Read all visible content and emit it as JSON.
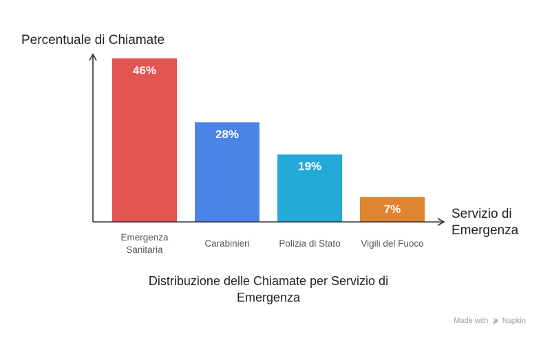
{
  "chart_data": {
    "type": "bar",
    "title": "Distribuzione delle Chiamate per Servizio di Emergenza",
    "ylabel": "Percentuale di Chiamate",
    "xlabel": "Servizio di Emergenza",
    "categories": [
      "Emergenza Sanitaria",
      "Carabinieri",
      "Polizia di Stato",
      "Vigili del Fuoco"
    ],
    "category_lines": [
      [
        "Emergenza",
        "Sanitaria"
      ],
      [
        "Carabinieri"
      ],
      [
        "Polizia di Stato"
      ],
      [
        "Vigili del Fuoco"
      ]
    ],
    "values": [
      46,
      28,
      19,
      7
    ],
    "value_labels": [
      "46%",
      "28%",
      "19%",
      "7%"
    ],
    "colors": [
      "#e35552",
      "#4a84e6",
      "#23aad9",
      "#e0842f"
    ],
    "ylim": [
      0,
      46
    ],
    "grid": false,
    "legend": "none"
  },
  "xlabel_lines": [
    "Servizio di",
    "Emergenza"
  ],
  "title_lines": [
    "Distribuzione delle Chiamate per Servizio di",
    "Emergenza"
  ],
  "watermark": {
    "text": "Made with",
    "brand": "Napkin"
  }
}
